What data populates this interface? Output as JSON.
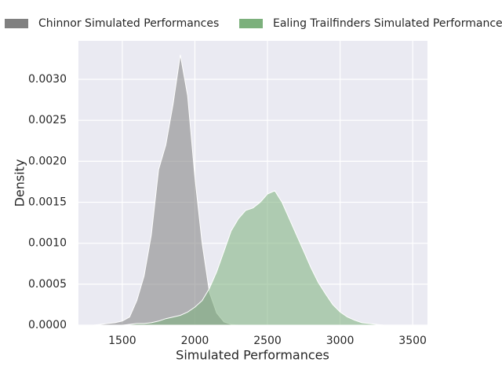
{
  "chart_data": {
    "type": "area",
    "xlabel": "Simulated Performances",
    "ylabel": "Density",
    "x": [
      1300,
      1350,
      1400,
      1450,
      1500,
      1550,
      1600,
      1650,
      1700,
      1750,
      1800,
      1850,
      1900,
      1950,
      2000,
      2050,
      2100,
      2150,
      2200,
      2250,
      2300,
      2350,
      2400,
      2450,
      2500,
      2550,
      2600,
      2650,
      2700,
      2750,
      2800,
      2850,
      2900,
      2950,
      3000,
      3050,
      3100,
      3150,
      3200,
      3250,
      3300,
      3350,
      3400,
      3450,
      3500
    ],
    "series": [
      {
        "name": "Chinnor Simulated Performances",
        "color": "#808080",
        "values": [
          0,
          1e-05,
          2e-05,
          3e-05,
          5e-05,
          0.0001,
          0.0003,
          0.0006,
          0.0011,
          0.0019,
          0.0022,
          0.0027,
          0.0033,
          0.0028,
          0.0018,
          0.001,
          0.0004,
          0.00015,
          4e-05,
          1e-05,
          0,
          0,
          0,
          0,
          0,
          0,
          0,
          0,
          0,
          0,
          0,
          0,
          0,
          0,
          0,
          0,
          0,
          0,
          0,
          0,
          0,
          0,
          0,
          0,
          0
        ]
      },
      {
        "name": "Ealing Trailfinders Simulated Performances",
        "color": "#7cb07c",
        "values": [
          0,
          0,
          0,
          0,
          0,
          1e-05,
          2e-05,
          2e-05,
          3e-05,
          5e-05,
          8e-05,
          0.0001,
          0.00012,
          0.00016,
          0.00022,
          0.0003,
          0.00045,
          0.00065,
          0.0009,
          0.00115,
          0.0013,
          0.0014,
          0.00143,
          0.0015,
          0.0016,
          0.00164,
          0.0015,
          0.0013,
          0.0011,
          0.0009,
          0.0007,
          0.00052,
          0.00038,
          0.00025,
          0.00016,
          0.0001,
          6e-05,
          3e-05,
          2e-05,
          1e-05,
          0,
          0,
          0,
          0,
          0
        ]
      }
    ],
    "xlim": [
      1198,
      3602
    ],
    "xticks": [
      1500,
      2000,
      2500,
      3000,
      3500
    ],
    "ylim": [
      0,
      0.00347
    ],
    "yticks": [
      {
        "value": 0,
        "label": "0.0000"
      },
      {
        "value": 0.0005,
        "label": "0.0005"
      },
      {
        "value": 0.001,
        "label": "0.0010"
      },
      {
        "value": 0.0015,
        "label": "0.0015"
      },
      {
        "value": 0.002,
        "label": "0.0020"
      },
      {
        "value": 0.0025,
        "label": "0.0025"
      },
      {
        "value": 0.003,
        "label": "0.0030"
      }
    ],
    "grid": true,
    "legend": "top"
  }
}
